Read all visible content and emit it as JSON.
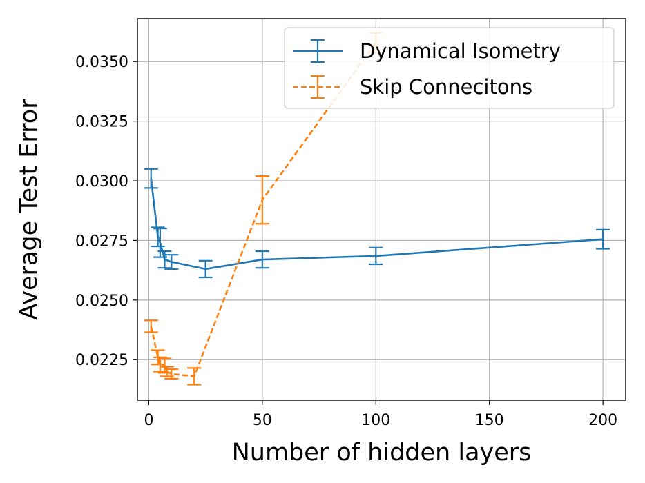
{
  "chart_data": {
    "type": "line",
    "xlabel": "Number of hidden layers",
    "ylabel": "Average Test Error",
    "xlim": [
      -5,
      210
    ],
    "ylim": [
      0.0208,
      0.0368
    ],
    "xticks": [
      0,
      50,
      100,
      150,
      200
    ],
    "xtick_labels": [
      "0",
      "50",
      "100",
      "150",
      "200"
    ],
    "yticks": [
      0.0225,
      0.025,
      0.0275,
      0.03,
      0.0325,
      0.035
    ],
    "ytick_labels": [
      "0.0225",
      "0.0250",
      "0.0275",
      "0.0300",
      "0.0325",
      "0.0350"
    ],
    "grid": true,
    "legend_position": "top-right",
    "series": [
      {
        "name": "Dynamical Isometry",
        "color": "#1f77b4",
        "linestyle": "solid",
        "x": [
          1,
          4,
          5,
          7,
          10,
          25,
          50,
          100,
          200
        ],
        "y": [
          0.0301,
          0.02765,
          0.0274,
          0.0267,
          0.0266,
          0.0263,
          0.0267,
          0.02685,
          0.02755
        ],
        "err": [
          0.0004,
          0.0004,
          0.0006,
          0.00035,
          0.0003,
          0.00035,
          0.00035,
          0.00035,
          0.0004
        ]
      },
      {
        "name": "Skip Connecitons",
        "color": "#ff7f0e",
        "linestyle": "dashed",
        "x": [
          1,
          4,
          5,
          7,
          8,
          10,
          20,
          50,
          100
        ],
        "y": [
          0.0239,
          0.0226,
          0.0223,
          0.02225,
          0.022,
          0.0219,
          0.0218,
          0.0292,
          0.0358
        ],
        "err": [
          0.00025,
          0.0003,
          0.0003,
          0.0003,
          0.0002,
          0.0002,
          0.00035,
          0.001,
          0.0004
        ]
      }
    ]
  }
}
